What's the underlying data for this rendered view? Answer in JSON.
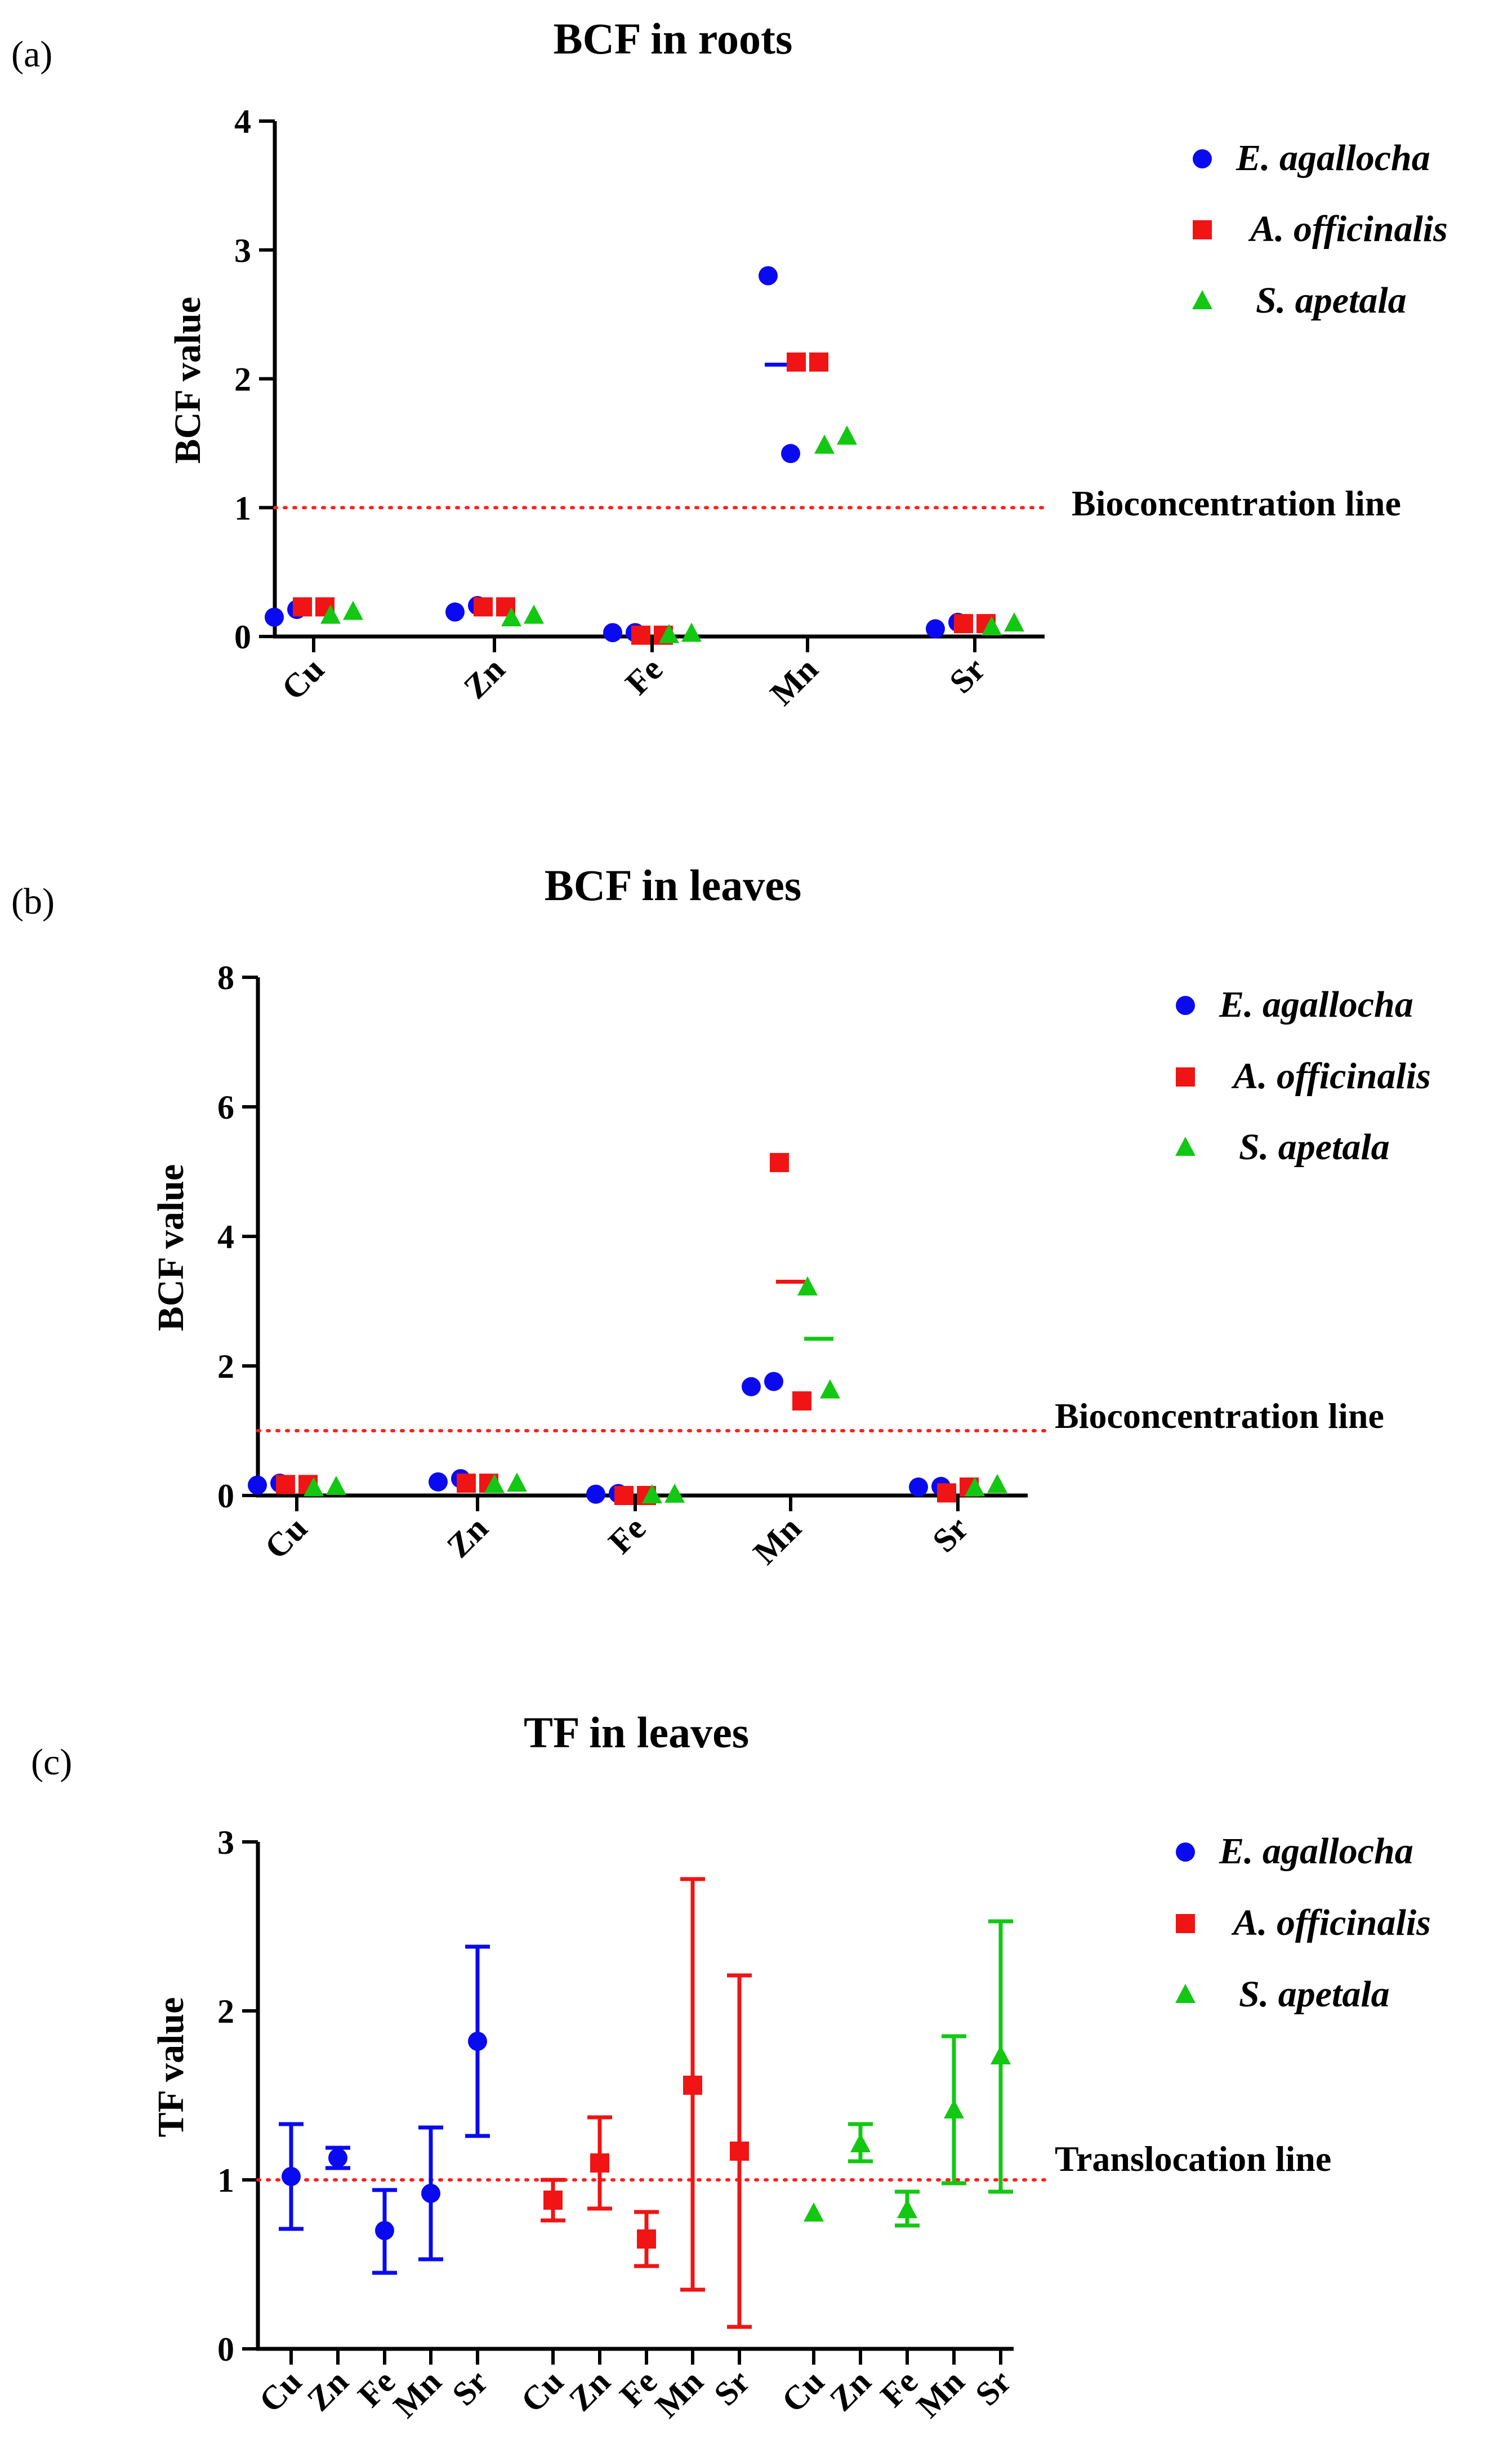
{
  "colors": {
    "E. agallocha": "#0a0af0",
    "A. officinalis": "#f01414",
    "S. apetala": "#12c812",
    "refline": "#ff2020"
  },
  "species": [
    "E. agallocha",
    "A. officinalis",
    "S. apetala"
  ],
  "chart_data": [
    {
      "type": "scatter",
      "panel_label": "(a)",
      "title": "BCF in roots",
      "ylabel": "BCF value",
      "xlabel": "",
      "ylim": [
        0,
        4
      ],
      "yticks": [
        "0",
        "1",
        "2",
        "3",
        "4"
      ],
      "categories": [
        "Cu",
        "Zn",
        "Fe",
        "Mn",
        "Sr"
      ],
      "reference_line": {
        "value": 1,
        "label": "Bioconcentration line"
      },
      "legend": {
        "placement": "top-right",
        "entries": [
          "E. agallocha",
          "A. officinalis",
          "S. apetala"
        ]
      },
      "series": [
        {
          "name": "E. agallocha",
          "marker": "circle",
          "points": [
            [
              0.15,
              0.21
            ],
            [
              0.19,
              0.24
            ],
            [
              0.03,
              0.03
            ],
            [
              2.8,
              1.42
            ],
            [
              0.06,
              0.11
            ]
          ],
          "means": [
            null,
            null,
            null,
            2.11,
            null
          ]
        },
        {
          "name": "A. officinalis",
          "marker": "square",
          "points": [
            [
              0.23,
              0.23
            ],
            [
              0.23,
              0.23
            ],
            [
              0.01,
              0.01
            ],
            [
              2.13,
              2.13
            ],
            [
              0.1,
              0.1
            ]
          ],
          "means": [
            null,
            null,
            null,
            null,
            null
          ]
        },
        {
          "name": "S. apetala",
          "marker": "triangle",
          "points": [
            [
              0.16,
              0.19
            ],
            [
              0.14,
              0.16
            ],
            [
              0.01,
              0.02
            ],
            [
              1.48,
              1.55
            ],
            [
              0.07,
              0.1
            ]
          ],
          "means": [
            null,
            null,
            null,
            null,
            null
          ]
        }
      ]
    },
    {
      "type": "scatter",
      "panel_label": "(b)",
      "title": "BCF in leaves",
      "ylabel": "BCF value",
      "xlabel": "",
      "ylim": [
        0,
        8
      ],
      "yticks": [
        "0",
        "2",
        "4",
        "6",
        "8"
      ],
      "categories": [
        "Cu",
        "Zn",
        "Fe",
        "Mn",
        "Sr"
      ],
      "reference_line": {
        "value": 1,
        "label": "Bioconcentration line"
      },
      "legend": {
        "placement": "top-right",
        "entries": [
          "E. agallocha",
          "A. officinalis",
          "S. apetala"
        ]
      },
      "series": [
        {
          "name": "E. agallocha",
          "marker": "circle",
          "points": [
            [
              0.16,
              0.19
            ],
            [
              0.21,
              0.26
            ],
            [
              0.02,
              0.03
            ],
            [
              1.68,
              1.76
            ],
            [
              0.13,
              0.14
            ]
          ],
          "means": [
            null,
            null,
            null,
            null,
            null
          ]
        },
        {
          "name": "A. officinalis",
          "marker": "square",
          "points": [
            [
              0.17,
              0.17
            ],
            [
              0.19,
              0.19
            ],
            [
              0.0,
              0.0
            ],
            [
              5.14,
              1.46
            ],
            [
              0.04,
              0.13
            ]
          ],
          "means": [
            null,
            null,
            null,
            3.3,
            null
          ]
        },
        {
          "name": "S. apetala",
          "marker": "triangle",
          "points": [
            [
              0.11,
              0.13
            ],
            [
              0.16,
              0.18
            ],
            [
              0.0,
              0.01
            ],
            [
              3.21,
              1.62
            ],
            [
              0.11,
              0.16
            ]
          ],
          "means": [
            null,
            null,
            null,
            2.42,
            null
          ]
        }
      ]
    },
    {
      "type": "errorbar",
      "panel_label": "(c)",
      "title": "TF in leaves",
      "ylabel": "TF value",
      "xlabel": "",
      "ylim": [
        0,
        3
      ],
      "yticks": [
        "0",
        "1",
        "2",
        "3"
      ],
      "categories": [
        "Cu",
        "Zn",
        "Fe",
        "Mn",
        "Sr"
      ],
      "reference_line": {
        "value": 1,
        "label": "Translocation line"
      },
      "legend": {
        "placement": "top-right",
        "entries": [
          "E. agallocha",
          "A. officinalis",
          "S. apetala"
        ]
      },
      "series": [
        {
          "name": "E. agallocha",
          "marker": "circle",
          "mean": [
            1.02,
            1.13,
            0.7,
            0.92,
            1.82
          ],
          "low": [
            0.71,
            1.07,
            0.45,
            0.53,
            1.26
          ],
          "high": [
            1.33,
            1.19,
            0.94,
            1.31,
            2.38
          ]
        },
        {
          "name": "A. officinalis",
          "marker": "square",
          "mean": [
            0.88,
            1.1,
            0.65,
            1.56,
            1.17
          ],
          "low": [
            0.76,
            0.83,
            0.49,
            0.35,
            0.13
          ],
          "high": [
            1.0,
            1.37,
            0.81,
            2.78,
            2.21
          ]
        },
        {
          "name": "S. apetala",
          "marker": "triangle",
          "mean": [
            0.8,
            1.21,
            0.82,
            1.41,
            1.73
          ],
          "low": [
            0.8,
            1.11,
            0.73,
            0.98,
            0.93
          ],
          "high": [
            0.8,
            1.33,
            0.93,
            1.85,
            2.53
          ]
        }
      ]
    }
  ]
}
